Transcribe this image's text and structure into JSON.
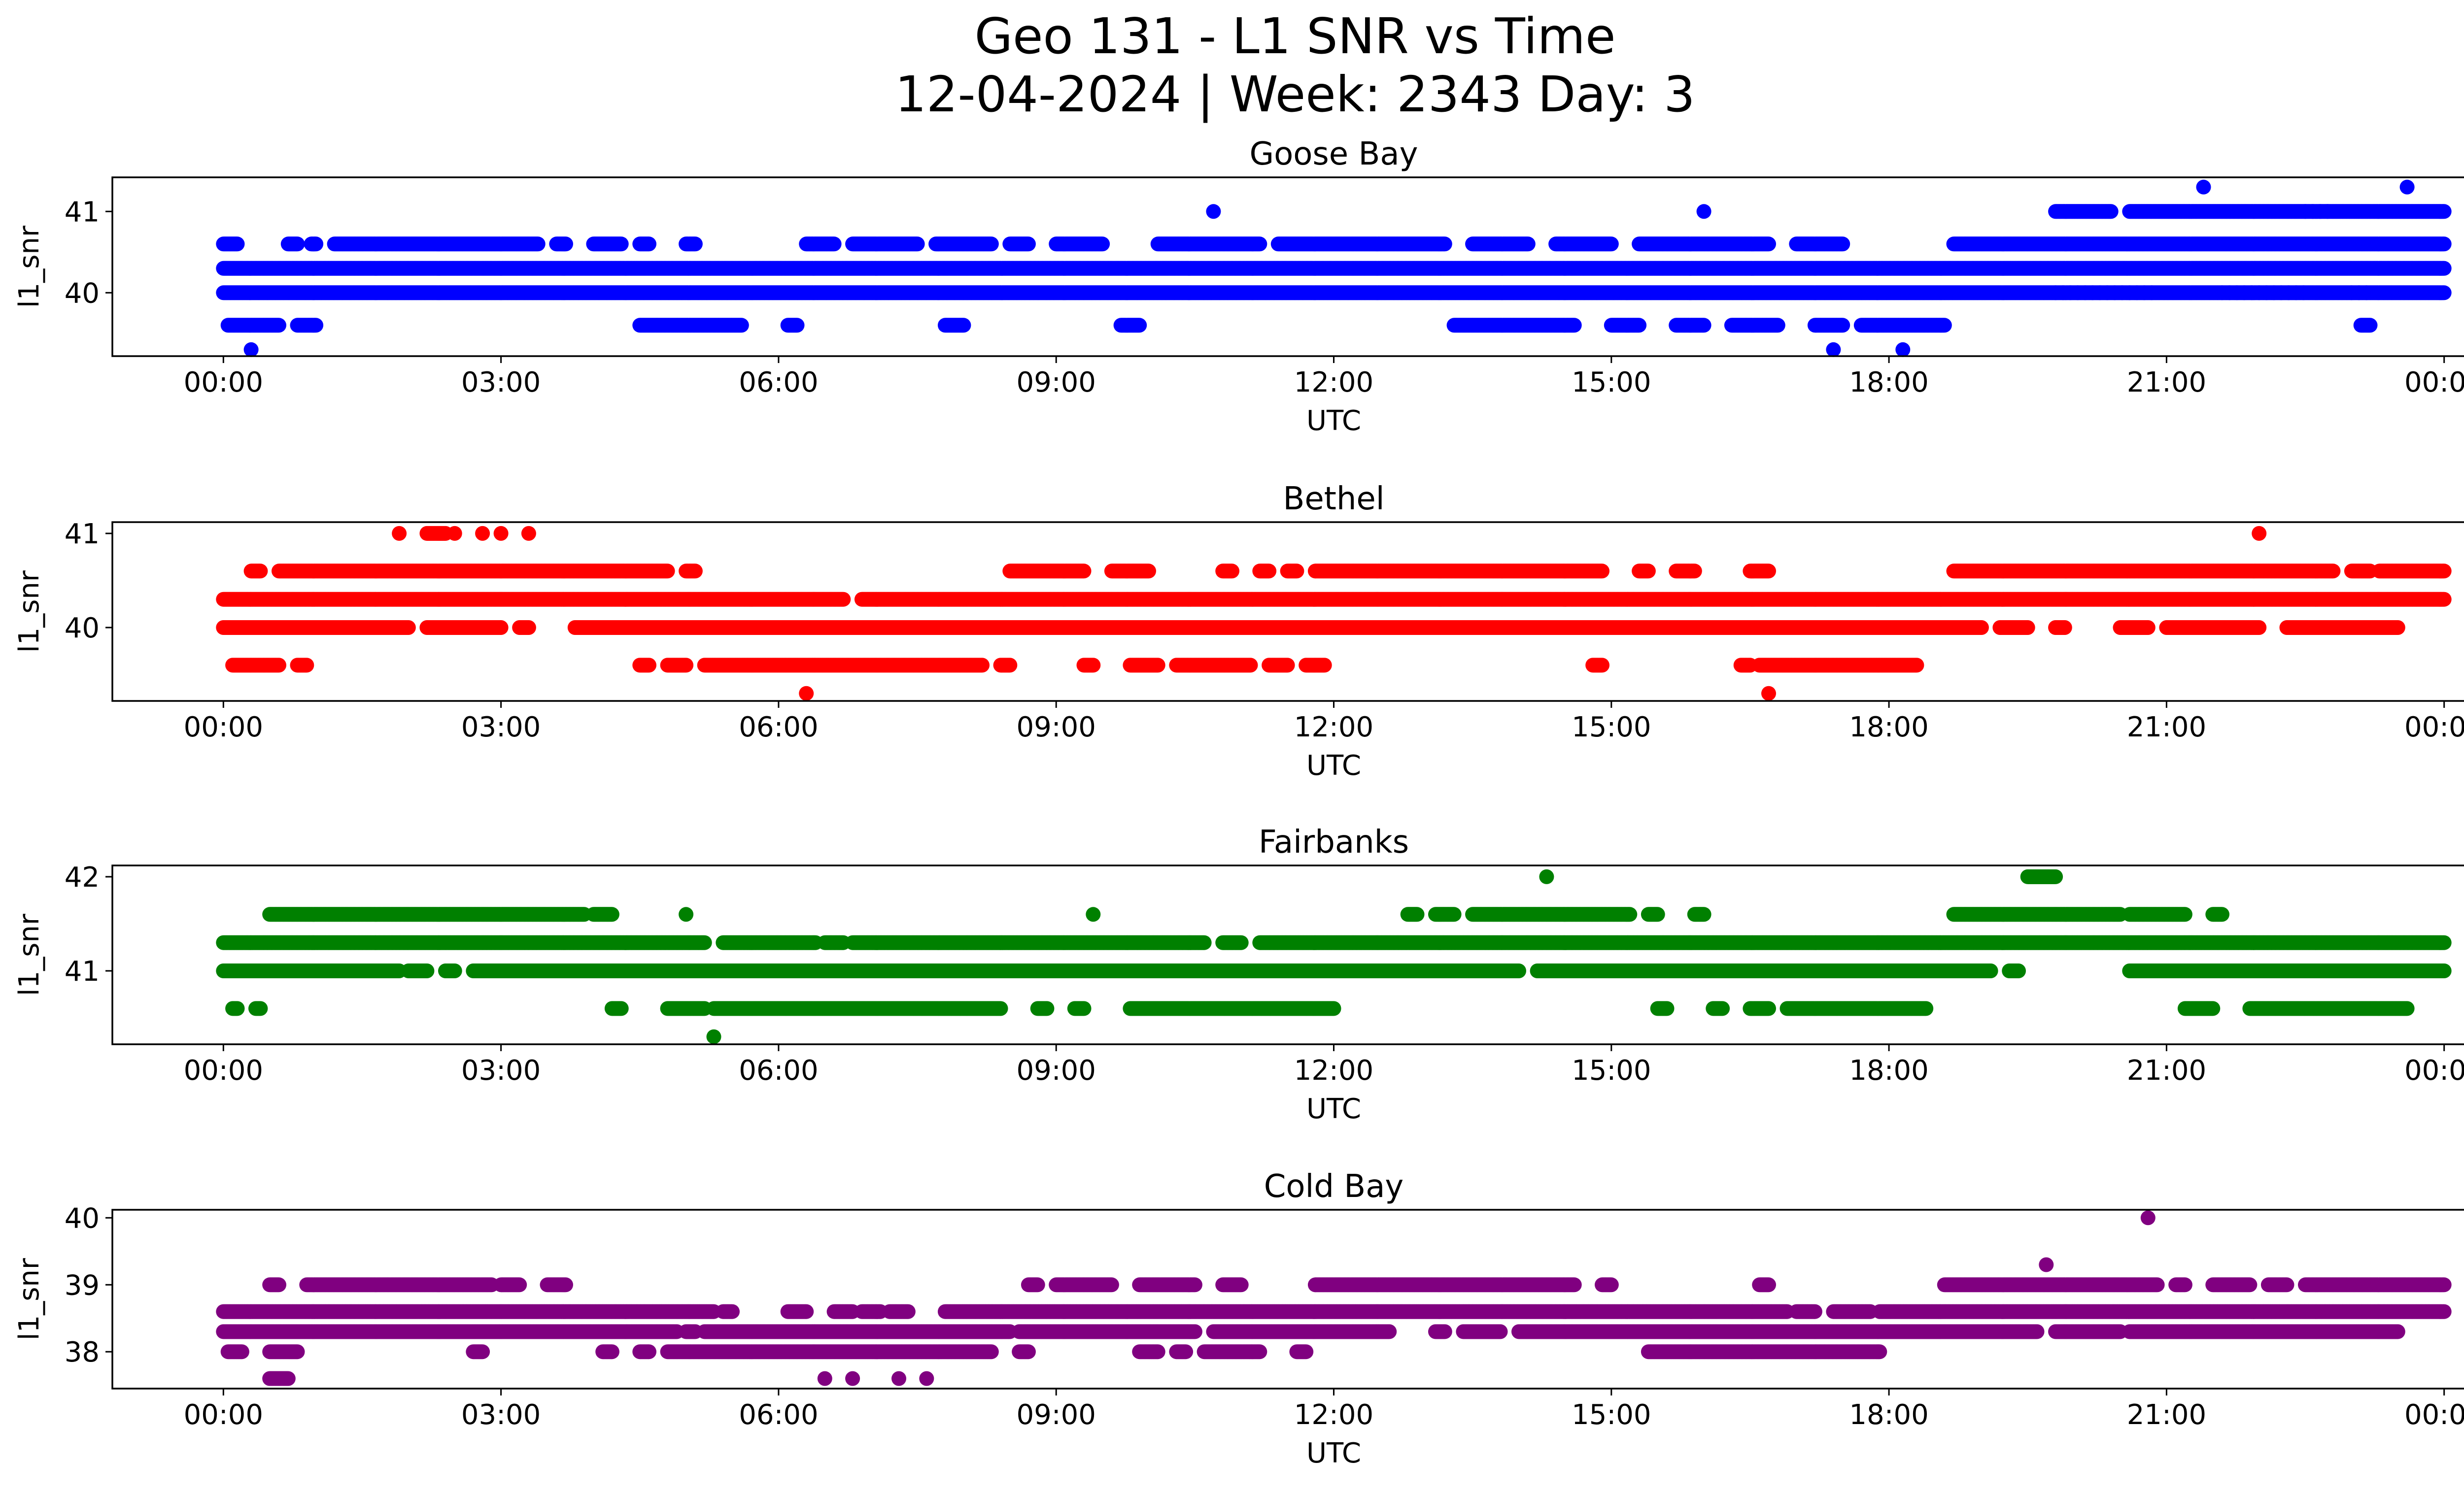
{
  "chart_data": {
    "type": "scatter",
    "title_line1": "Geo 131 - L1 SNR vs Time",
    "title_line2": "12-04-2024 | Week: 2343 Day: 3",
    "x_unit": "hours UTC",
    "x_range": [
      -1.2,
      25.2
    ],
    "x_tick_values": [
      0,
      3,
      6,
      9,
      12,
      15,
      18,
      21,
      24
    ],
    "x_tick_labels": [
      "00:00",
      "03:00",
      "06:00",
      "09:00",
      "12:00",
      "15:00",
      "18:00",
      "21:00",
      "00:00"
    ],
    "panels": [
      {
        "title": "Goose Bay",
        "xlabel": "UTC",
        "ylabel": "l1_snr",
        "color": "#0000ff",
        "ylim": [
          39.22,
          41.42
        ],
        "y_ticks": [
          40,
          41
        ],
        "y_tick_labels": [
          "40",
          "41"
        ],
        "bands": [
          {
            "y": 40.3,
            "runs": [
              [
                0,
                24
              ]
            ]
          },
          {
            "y": 40.0,
            "runs": [
              [
                0,
                24
              ]
            ],
            "sparse": [
              [
                19.8,
                20.9
              ],
              [
                21.6,
                22.5
              ],
              [
                23.0,
                23.2
              ]
            ]
          },
          {
            "y": 40.6,
            "runs": [
              [
                0.0,
                0.15
              ],
              [
                0.7,
                0.8
              ],
              [
                0.95,
                1.0
              ],
              [
                1.2,
                3.4
              ],
              [
                3.6,
                3.7
              ],
              [
                4.0,
                4.3
              ],
              [
                4.5,
                4.6
              ],
              [
                5.0,
                5.1
              ],
              [
                6.3,
                6.6
              ],
              [
                6.8,
                7.5
              ],
              [
                7.7,
                8.3
              ],
              [
                8.5,
                8.7
              ],
              [
                9.0,
                9.5
              ],
              [
                10.1,
                11.2
              ],
              [
                11.4,
                13.2
              ],
              [
                13.5,
                14.1
              ],
              [
                14.4,
                15.0
              ],
              [
                15.3,
                16.7
              ],
              [
                17.0,
                17.5
              ],
              [
                18.7,
                24
              ]
            ]
          },
          {
            "y": 39.6,
            "runs": [
              [
                0.05,
                0.6
              ],
              [
                0.8,
                1.0
              ],
              [
                4.5,
                5.6
              ],
              [
                6.1,
                6.2
              ],
              [
                7.8,
                8.0
              ],
              [
                9.7,
                9.9
              ],
              [
                13.3,
                14.6
              ],
              [
                15.0,
                15.3
              ],
              [
                15.7,
                16.0
              ],
              [
                16.3,
                16.8
              ],
              [
                17.2,
                17.5
              ],
              [
                17.7,
                18.6
              ],
              [
                23.1,
                23.2
              ]
            ]
          },
          {
            "y": 41.0,
            "runs": [
              [
                19.8,
                20.4
              ],
              [
                20.6,
                24
              ]
            ],
            "sparse": [
              [
                22.5,
                22.8
              ]
            ]
          }
        ],
        "points": [
          [
            0.3,
            39.3
          ],
          [
            17.4,
            39.3
          ],
          [
            18.15,
            39.3
          ],
          [
            10.7,
            41.0
          ],
          [
            16.0,
            41.0
          ],
          [
            21.4,
            41.3
          ],
          [
            23.6,
            41.3
          ]
        ]
      },
      {
        "title": "Bethel",
        "xlabel": "UTC",
        "ylabel": "l1_snr",
        "color": "#ff0000",
        "ylim": [
          39.22,
          41.12
        ],
        "y_ticks": [
          40,
          41
        ],
        "y_tick_labels": [
          "40",
          "41"
        ],
        "bands": [
          {
            "y": 40.3,
            "runs": [
              [
                0,
                6.7
              ],
              [
                6.9,
                24
              ]
            ]
          },
          {
            "y": 40.0,
            "runs": [
              [
                0,
                2.0
              ],
              [
                2.2,
                3.0
              ],
              [
                3.2,
                3.3
              ],
              [
                3.8,
                19.0
              ],
              [
                19.2,
                19.5
              ],
              [
                19.8,
                19.9
              ],
              [
                20.5,
                20.8
              ],
              [
                21.0,
                22.0
              ],
              [
                22.3,
                23.5
              ]
            ]
          },
          {
            "y": 40.6,
            "runs": [
              [
                0.3,
                0.4
              ],
              [
                0.6,
                4.8
              ],
              [
                5.0,
                5.1
              ],
              [
                8.5,
                9.3
              ],
              [
                9.6,
                10.0
              ],
              [
                10.8,
                10.9
              ],
              [
                11.2,
                11.3
              ],
              [
                11.5,
                11.6
              ],
              [
                11.8,
                14.9
              ],
              [
                15.3,
                15.4
              ],
              [
                15.7,
                15.9
              ],
              [
                16.5,
                16.7
              ],
              [
                18.7,
                22.8
              ],
              [
                23.0,
                23.2
              ],
              [
                23.3,
                24
              ]
            ]
          },
          {
            "y": 39.6,
            "runs": [
              [
                0.1,
                0.6
              ],
              [
                0.8,
                0.9
              ],
              [
                4.5,
                4.6
              ],
              [
                4.8,
                5.0
              ],
              [
                5.2,
                8.2
              ],
              [
                8.4,
                8.5
              ],
              [
                9.3,
                9.4
              ],
              [
                9.8,
                10.1
              ],
              [
                10.3,
                11.1
              ],
              [
                11.3,
                11.5
              ],
              [
                11.7,
                11.9
              ],
              [
                14.8,
                14.9
              ],
              [
                16.4,
                16.5
              ],
              [
                16.6,
                18.3
              ]
            ]
          },
          {
            "y": 41.0,
            "runs": [
              [
                2.2,
                2.4
              ]
            ]
          }
        ],
        "points": [
          [
            1.9,
            41.0
          ],
          [
            2.5,
            41.0
          ],
          [
            2.8,
            41.0
          ],
          [
            3.0,
            41.0
          ],
          [
            3.3,
            41.0
          ],
          [
            22.0,
            41.0
          ],
          [
            6.3,
            39.3
          ],
          [
            16.7,
            39.3
          ]
        ]
      },
      {
        "title": "Fairbanks",
        "xlabel": "UTC",
        "ylabel": "l1_snr",
        "color": "#008000",
        "ylim": [
          40.22,
          42.12
        ],
        "y_ticks": [
          41,
          42
        ],
        "y_tick_labels": [
          "41",
          "42"
        ],
        "bands": [
          {
            "y": 41.3,
            "runs": [
              [
                0,
                5.2
              ],
              [
                5.4,
                6.4
              ],
              [
                6.5,
                6.7
              ],
              [
                6.8,
                10.6
              ],
              [
                10.8,
                11.0
              ],
              [
                11.2,
                24
              ]
            ]
          },
          {
            "y": 41.0,
            "runs": [
              [
                0,
                1.9
              ],
              [
                2.0,
                2.2
              ],
              [
                2.4,
                2.5
              ],
              [
                2.7,
                14.0
              ],
              [
                14.2,
                19.1
              ],
              [
                19.3,
                19.4
              ],
              [
                20.6,
                24
              ]
            ]
          },
          {
            "y": 41.6,
            "runs": [
              [
                0.5,
                3.9
              ],
              [
                4.0,
                4.2
              ],
              [
                12.8,
                12.9
              ],
              [
                13.1,
                13.3
              ],
              [
                13.5,
                15.2
              ],
              [
                15.4,
                15.5
              ],
              [
                15.9,
                16.0
              ],
              [
                18.7,
                20.5
              ],
              [
                20.6,
                21.2
              ],
              [
                21.5,
                21.6
              ]
            ]
          },
          {
            "y": 40.6,
            "runs": [
              [
                0.1,
                0.15
              ],
              [
                0.35,
                0.4
              ],
              [
                4.2,
                4.3
              ],
              [
                4.8,
                5.2
              ],
              [
                5.3,
                8.4
              ],
              [
                8.8,
                8.9
              ],
              [
                9.2,
                9.3
              ],
              [
                9.8,
                12.0
              ],
              [
                15.5,
                15.6
              ],
              [
                16.1,
                16.2
              ],
              [
                16.5,
                16.7
              ],
              [
                16.9,
                18.4
              ],
              [
                21.2,
                21.5
              ],
              [
                21.9,
                23.6
              ]
            ]
          },
          {
            "y": 42.0,
            "runs": [
              [
                19.5,
                19.8
              ]
            ]
          }
        ],
        "points": [
          [
            5.0,
            41.6
          ],
          [
            9.4,
            41.6
          ],
          [
            5.3,
            40.3
          ],
          [
            14.3,
            42.0
          ]
        ]
      },
      {
        "title": "Cold Bay",
        "xlabel": "UTC",
        "ylabel": "l1_snr",
        "color": "#800080",
        "ylim": [
          37.45,
          40.12
        ],
        "y_ticks": [
          38,
          39,
          40
        ],
        "y_tick_labels": [
          "38",
          "39",
          "40"
        ],
        "bands": [
          {
            "y": 38.6,
            "runs": [
              [
                0,
                5.3
              ],
              [
                5.4,
                5.5
              ],
              [
                6.1,
                6.3
              ],
              [
                6.6,
                6.8
              ],
              [
                6.9,
                7.1
              ],
              [
                7.2,
                7.4
              ],
              [
                7.8,
                16.9
              ],
              [
                17.0,
                17.2
              ],
              [
                17.4,
                17.8
              ],
              [
                17.9,
                24
              ]
            ]
          },
          {
            "y": 38.3,
            "runs": [
              [
                0,
                4.9
              ],
              [
                5.0,
                5.1
              ],
              [
                5.2,
                8.5
              ],
              [
                8.6,
                10.5
              ],
              [
                10.7,
                12.6
              ],
              [
                13.1,
                13.2
              ],
              [
                13.4,
                13.8
              ],
              [
                14.0,
                19.6
              ],
              [
                19.8,
                20.5
              ],
              [
                20.6,
                23.5
              ]
            ]
          },
          {
            "y": 38.0,
            "runs": [
              [
                0.05,
                0.2
              ],
              [
                0.5,
                0.8
              ],
              [
                2.7,
                2.8
              ],
              [
                4.1,
                4.2
              ],
              [
                4.5,
                4.6
              ],
              [
                4.8,
                8.3
              ],
              [
                8.6,
                8.7
              ],
              [
                9.9,
                10.1
              ],
              [
                10.3,
                10.4
              ],
              [
                10.6,
                11.2
              ],
              [
                11.6,
                11.7
              ],
              [
                15.4,
                17.9
              ]
            ]
          },
          {
            "y": 39.0,
            "runs": [
              [
                0.5,
                0.6
              ],
              [
                0.9,
                2.9
              ],
              [
                3.0,
                3.2
              ],
              [
                3.5,
                3.7
              ],
              [
                8.7,
                8.8
              ],
              [
                9.0,
                9.6
              ],
              [
                9.9,
                10.5
              ],
              [
                10.8,
                11.0
              ],
              [
                11.8,
                14.6
              ],
              [
                14.9,
                15.0
              ],
              [
                16.6,
                16.7
              ],
              [
                18.6,
                20.9
              ],
              [
                21.1,
                21.2
              ],
              [
                21.5,
                21.9
              ],
              [
                22.1,
                22.3
              ],
              [
                22.5,
                24
              ]
            ]
          },
          {
            "y": 37.6,
            "runs": [
              [
                0.5,
                0.7
              ]
            ]
          }
        ],
        "points": [
          [
            6.5,
            37.6
          ],
          [
            6.8,
            37.6
          ],
          [
            7.3,
            37.6
          ],
          [
            7.6,
            37.6
          ],
          [
            19.7,
            39.3
          ],
          [
            20.8,
            40.0
          ]
        ]
      }
    ]
  }
}
